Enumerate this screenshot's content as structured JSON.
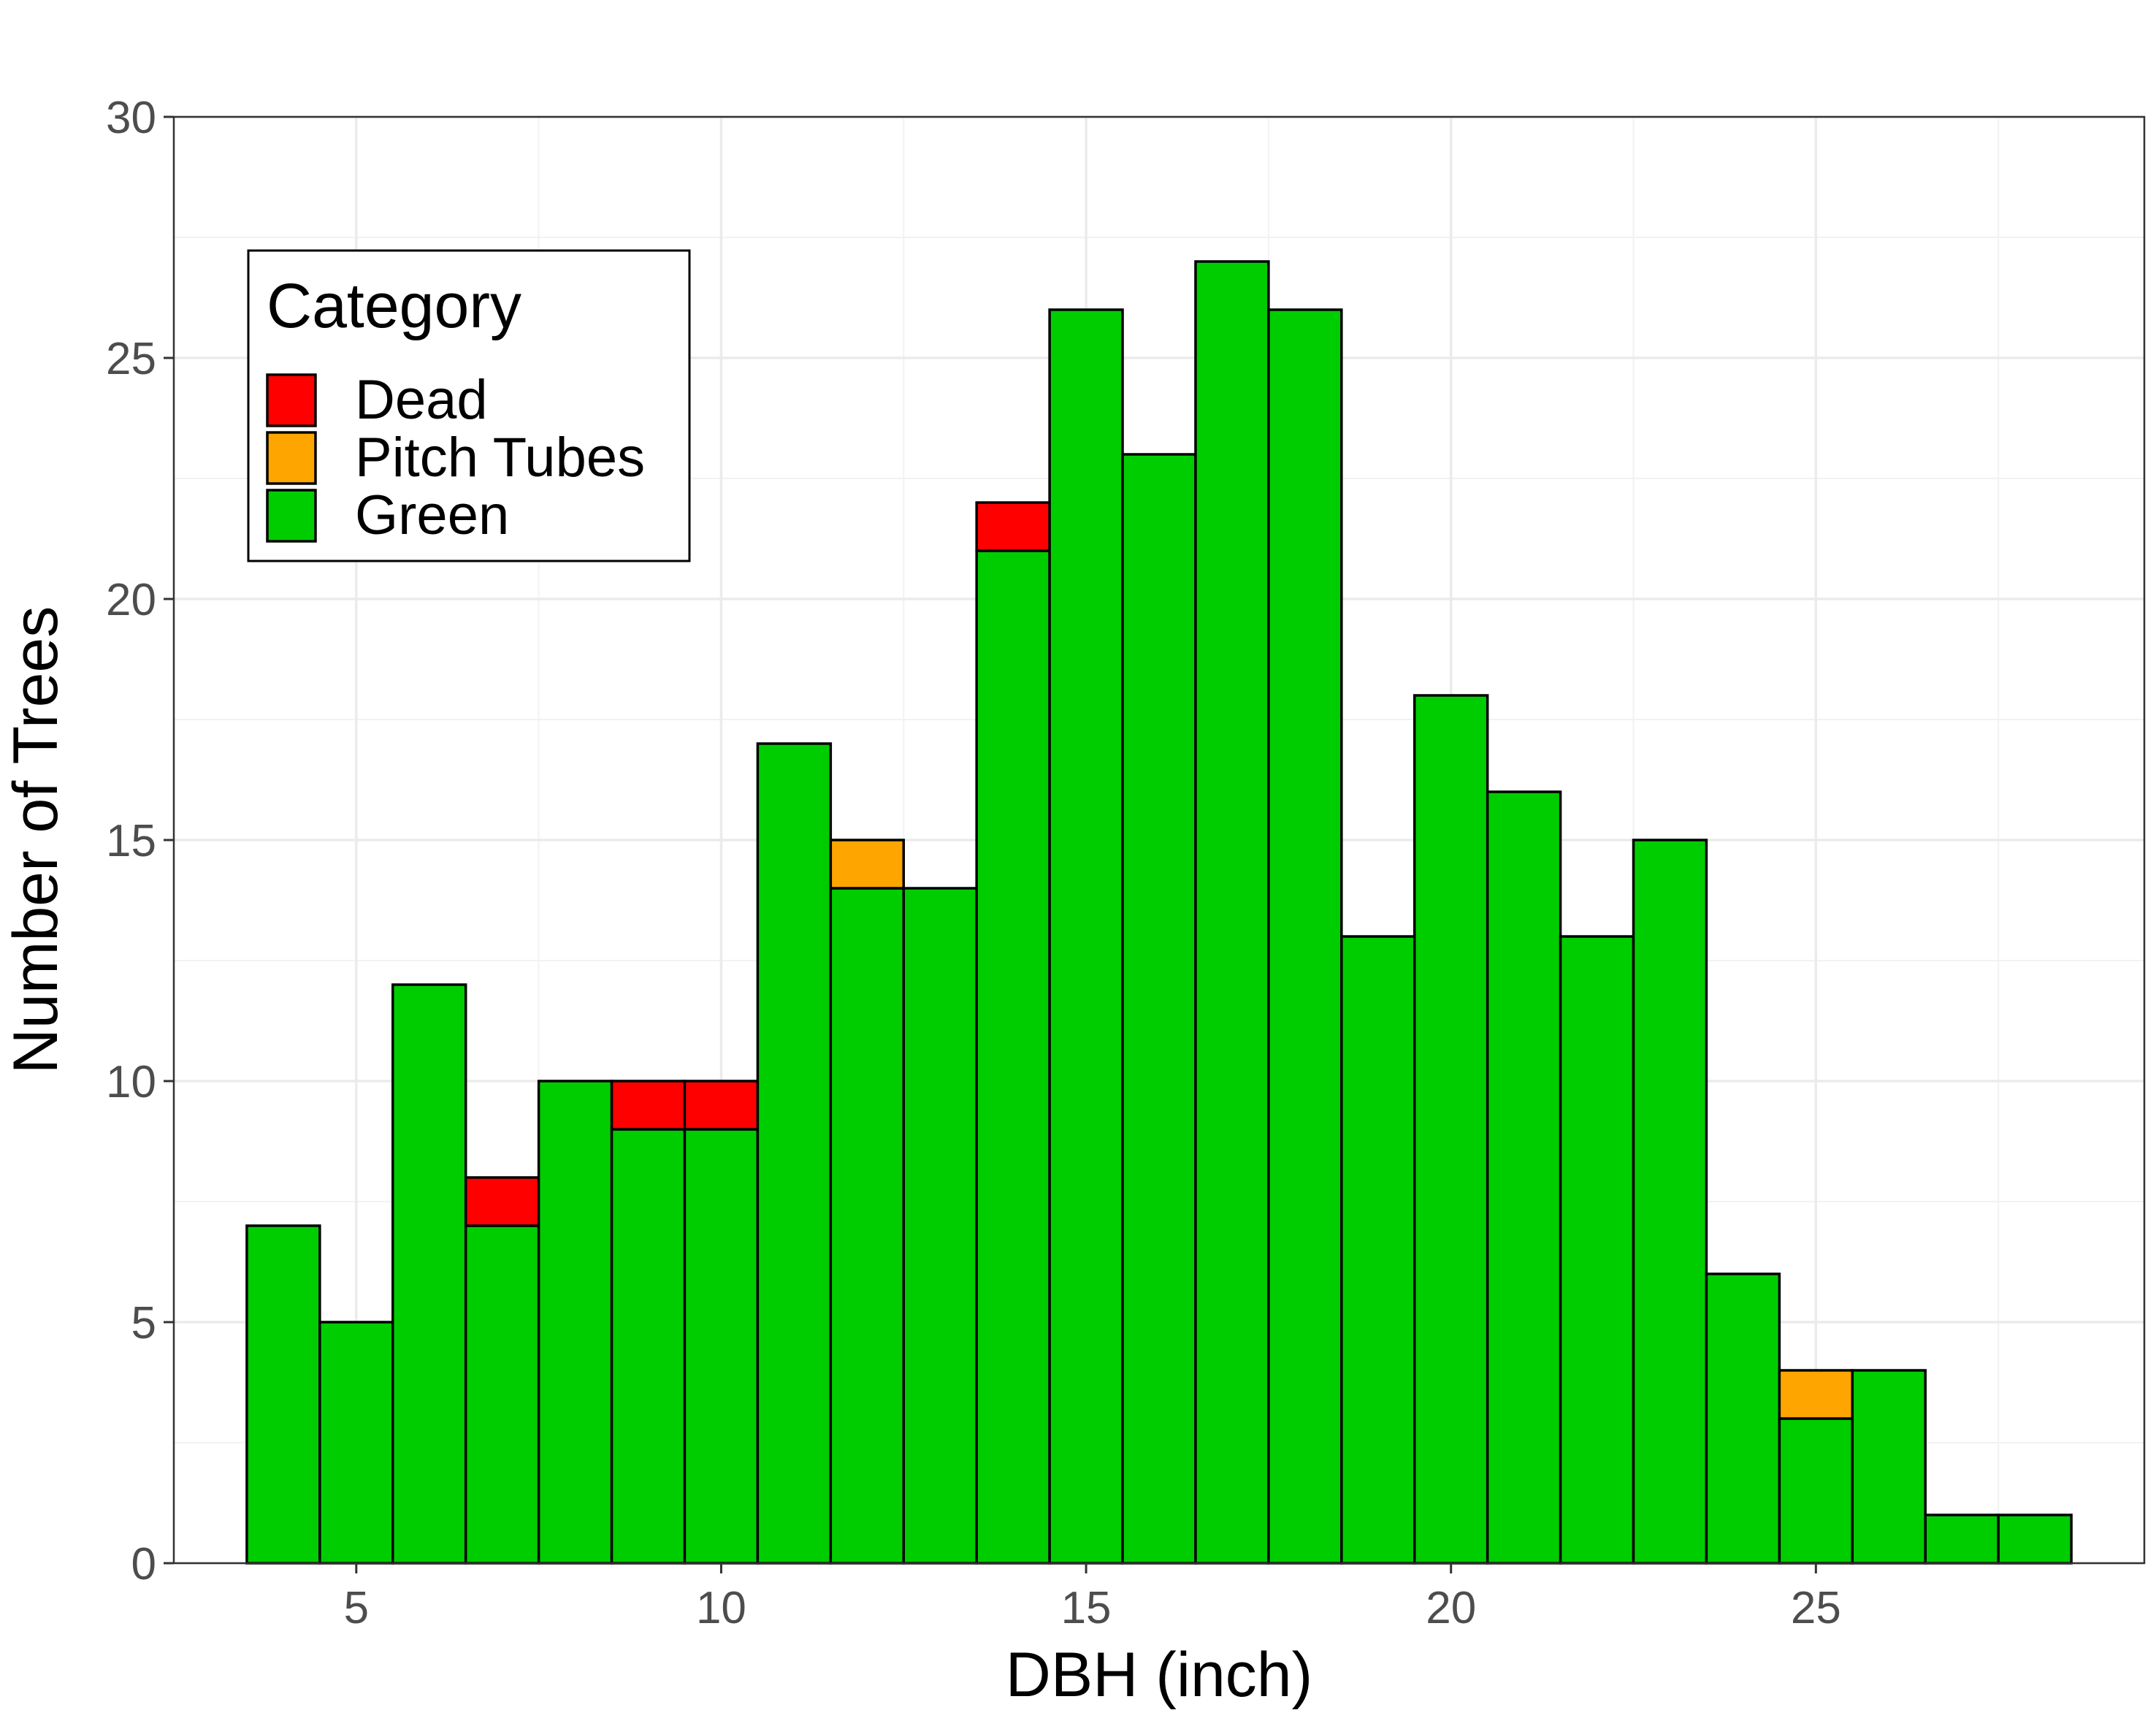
{
  "chart_data": {
    "type": "bar",
    "subtype": "stacked-histogram",
    "title": "",
    "xlabel": "DBH (inch)",
    "ylabel": "Number of Trees",
    "xlim": [
      2.5,
      29.5
    ],
    "ylim": [
      0,
      30
    ],
    "xticks": [
      5,
      10,
      15,
      20,
      25
    ],
    "yticks": [
      0,
      5,
      10,
      15,
      20,
      25,
      30
    ],
    "grid": true,
    "legend": {
      "title": "Category",
      "position": "top-left",
      "entries": [
        {
          "label": "Dead",
          "color": "#ff0000"
        },
        {
          "label": "Pitch Tubes",
          "color": "#ffa500"
        },
        {
          "label": "Green",
          "color": "#00cd00"
        }
      ]
    },
    "bin_width": 1,
    "x": [
      4,
      5,
      6,
      7,
      8,
      9,
      10,
      11,
      12,
      13,
      14,
      15,
      16,
      17,
      18,
      19,
      20,
      21,
      22,
      23,
      24,
      25,
      26,
      27,
      28
    ],
    "series": [
      {
        "name": "Green",
        "color": "#00cd00",
        "values": [
          7,
          5,
          12,
          7,
          10,
          9,
          9,
          17,
          14,
          14,
          21,
          26,
          23,
          27,
          26,
          13,
          18,
          16,
          13,
          15,
          6,
          3,
          4,
          1,
          1
        ]
      },
      {
        "name": "Pitch Tubes",
        "color": "#ffa500",
        "values": [
          0,
          0,
          0,
          0,
          0,
          0,
          0,
          0,
          1,
          0,
          0,
          0,
          0,
          0,
          0,
          0,
          0,
          0,
          0,
          0,
          0,
          1,
          0,
          0,
          0
        ]
      },
      {
        "name": "Dead",
        "color": "#ff0000",
        "values": [
          0,
          0,
          0,
          1,
          0,
          1,
          1,
          0,
          0,
          0,
          1,
          0,
          0,
          0,
          0,
          0,
          0,
          0,
          0,
          0,
          0,
          0,
          0,
          0,
          0
        ]
      }
    ]
  }
}
